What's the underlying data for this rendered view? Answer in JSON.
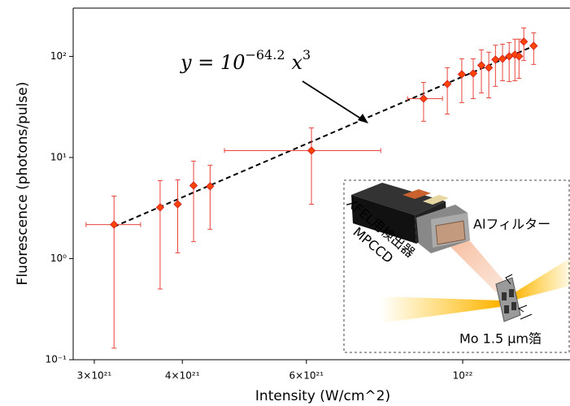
{
  "chart_data": {
    "type": "scatter",
    "x_label": "Intensity (W/cm^2)",
    "y_label": "Fluorescence (photons/pulse)",
    "xscale": "log",
    "yscale": "log",
    "xlim": [
      2.8e+21,
      1.42e+22
    ],
    "ylim": [
      0.1,
      300
    ],
    "xticks": [
      {
        "value": 3e+21,
        "label": "3×10²¹"
      },
      {
        "value": 4e+21,
        "label": "4×10²¹"
      },
      {
        "value": 6e+21,
        "label": "6×10²¹"
      },
      {
        "value": 1e+22,
        "label": "10²²"
      }
    ],
    "yticks": [
      {
        "value": 0.1,
        "label": "10⁻¹"
      },
      {
        "value": 1,
        "label": "10⁰"
      },
      {
        "value": 10,
        "label": "10¹"
      },
      {
        "value": 100,
        "label": "10²"
      }
    ],
    "series": [
      {
        "color": "#ff4500",
        "edge_color": "#d62728",
        "error_color": "#e8453c",
        "x": [
          3.2e+21,
          3.72e+21,
          3.94e+21,
          4.15e+21,
          4.38e+21,
          6.1e+21,
          8.8e+21,
          9.51e+21,
          9.97e+21,
          1.035e+22,
          1.063e+22,
          1.089e+22,
          1.113e+22,
          1.139e+22,
          1.164e+22,
          1.186e+22,
          1.202e+22,
          1.221e+22,
          1.261e+22
        ],
        "y": [
          2.17,
          3.21,
          3.45,
          5.28,
          5.19,
          11.7,
          38.2,
          53.3,
          66.5,
          67.8,
          81.6,
          77.3,
          92.9,
          94.6,
          100,
          104,
          100,
          140,
          127
        ],
        "yerr_minus": [
          2.04,
          2.71,
          2.31,
          3.81,
          3.24,
          8.25,
          15.4,
          26.4,
          31.6,
          29.6,
          38.1,
          38.4,
          42.4,
          37.2,
          43.6,
          46.6,
          39.3,
          48.8,
          43.8
        ],
        "yerr_plus": [
          1.98,
          2.69,
          2.56,
          3.92,
          3.2,
          7.9,
          17.1,
          24,
          28.1,
          26.8,
          34.4,
          32.7,
          36.1,
          37.4,
          37,
          44,
          48,
          51,
          44
        ],
        "xerr_minus": [
          2.8e+20,
          null,
          null,
          null,
          null,
          1.51e+21,
          4.5e+20,
          null,
          null,
          null,
          null,
          null,
          null,
          null,
          null,
          null,
          null,
          null,
          null
        ],
        "xerr_plus": [
          2.9e+20,
          null,
          null,
          null,
          null,
          1.55e+21,
          5.6e+20,
          null,
          null,
          null,
          null,
          null,
          null,
          null,
          null,
          null,
          null,
          null,
          null
        ]
      }
    ],
    "fit": {
      "lhs": "y = 10",
      "exponent": -64.2,
      "variable": "x",
      "power": 3,
      "xrange": [
        3.2e+21,
        1.26e+22
      ],
      "color": "#000000"
    },
    "inset": {
      "detector_label": "XFEL用検出器",
      "detector_model": "MPCCD",
      "filter_label": "Alフィルター",
      "foil_label": "Mo 1.5 μm箔"
    }
  }
}
